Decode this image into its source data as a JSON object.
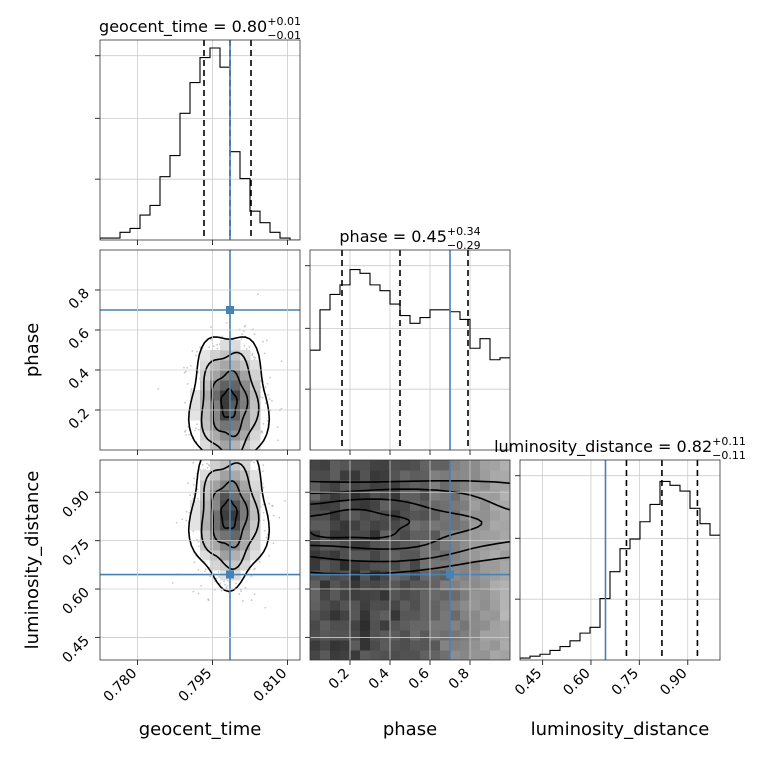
{
  "chart_data": {
    "type": "corner",
    "parameters": [
      "geocent_time",
      "phase",
      "luminosity_distance"
    ],
    "truths": {
      "geocent_time": 0.7985,
      "phase": 0.7,
      "luminosity_distance": 0.645
    },
    "titles": [
      {
        "param": "geocent_time",
        "median": "0.80",
        "plus": "+0.01",
        "minus": "−0.01",
        "prefix": "geocent_time = 0.80"
      },
      {
        "param": "phase",
        "median": "0.45",
        "plus": "+0.34",
        "minus": "−0.29",
        "prefix": "phase = 0.45"
      },
      {
        "param": "luminosity_distance",
        "median": "0.82",
        "plus": "+0.11",
        "minus": "−0.11",
        "prefix": "luminosity_distance = 0.82"
      }
    ],
    "axis_labels": {
      "x": [
        "geocent_time",
        "phase",
        "luminosity_distance"
      ],
      "y": [
        "phase",
        "luminosity_distance"
      ]
    },
    "ranges": {
      "geocent_time": [
        0.7725,
        0.8125
      ],
      "phase": [
        0.0,
        1.0
      ],
      "luminosity_distance": [
        0.38,
        1.0
      ]
    },
    "ticks": {
      "geocent_time": {
        "values": [
          0.78,
          0.795,
          0.81
        ],
        "labels": [
          "0.780",
          "0.795",
          "0.810"
        ]
      },
      "phase": {
        "values": [
          0.2,
          0.4,
          0.6,
          0.8
        ],
        "labels": [
          "0.2",
          "0.4",
          "0.6",
          "0.8"
        ]
      },
      "luminosity_distance": {
        "values": [
          0.45,
          0.6,
          0.75,
          0.9
        ],
        "labels": [
          "0.45",
          "0.60",
          "0.75",
          "0.90"
        ]
      }
    },
    "quantile_lines": {
      "geocent_time": [
        0.7933,
        0.7985,
        0.8027
      ],
      "phase": [
        0.16,
        0.45,
        0.79
      ],
      "luminosity_distance": [
        0.71,
        0.82,
        0.93
      ]
    },
    "histograms": {
      "geocent_time": {
        "edges_start": 0.7725,
        "bin_width": 0.002,
        "counts": [
          0.01,
          0.01,
          0.04,
          0.06,
          0.13,
          0.18,
          0.33,
          0.44,
          0.66,
          0.82,
          0.95,
          1.0,
          0.9,
          0.46,
          0.32,
          0.15,
          0.09,
          0.04,
          0.01,
          0.0
        ]
      },
      "phase": {
        "edges_start": 0.0,
        "bin_width": 0.05,
        "counts": [
          0.52,
          0.73,
          0.81,
          0.86,
          0.94,
          0.92,
          0.86,
          0.83,
          0.76,
          0.7,
          0.66,
          0.69,
          0.73,
          0.73,
          0.72,
          0.68,
          0.53,
          0.58,
          0.47,
          0.48
        ]
      },
      "luminosity_distance": {
        "edges_start": 0.38,
        "bin_width": 0.031,
        "counts": [
          0.01,
          0.02,
          0.03,
          0.05,
          0.07,
          0.1,
          0.14,
          0.17,
          0.32,
          0.46,
          0.58,
          0.63,
          0.72,
          0.81,
          0.93,
          0.91,
          0.88,
          0.79,
          0.71,
          0.65
        ]
      }
    },
    "panel_2d": [
      {
        "x": "geocent_time",
        "y": "phase",
        "peak": [
          0.7983,
          0.23
        ]
      },
      {
        "x": "geocent_time",
        "y": "luminosity_distance",
        "peak": [
          0.7983,
          0.83
        ]
      },
      {
        "x": "phase",
        "y": "luminosity_distance",
        "peak": [
          0.22,
          0.8
        ]
      }
    ],
    "grid": true,
    "truth_color": "#4682b4",
    "contour_color": "#000000",
    "scatter_color": "#9a9a9a"
  }
}
